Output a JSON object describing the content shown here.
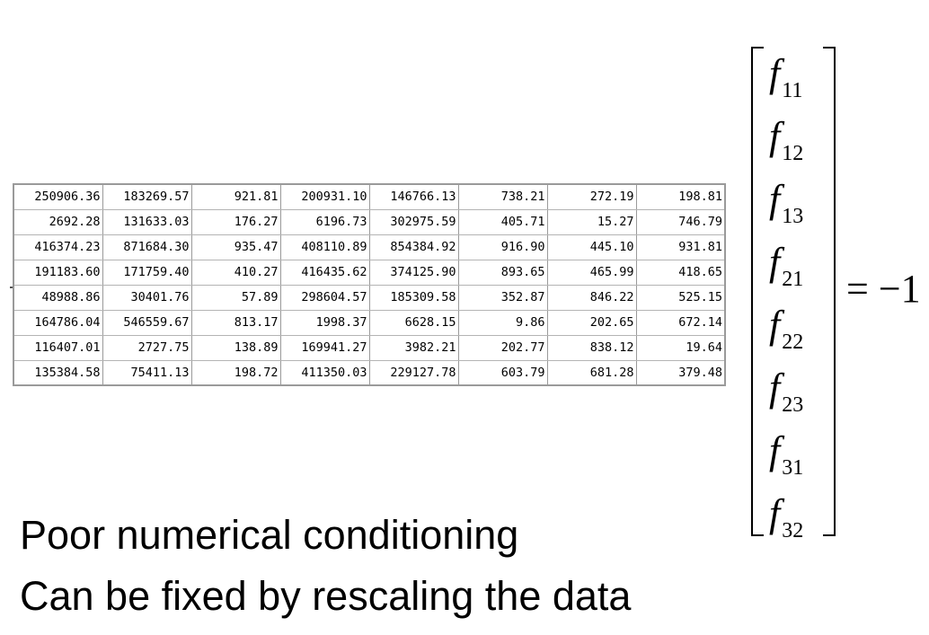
{
  "table": {
    "rows": [
      [
        "250906.36",
        "183269.57",
        "921.81",
        "200931.10",
        "146766.13",
        "738.21",
        "272.19",
        "198.81"
      ],
      [
        "2692.28",
        "131633.03",
        "176.27",
        "6196.73",
        "302975.59",
        "405.71",
        "15.27",
        "746.79"
      ],
      [
        "416374.23",
        "871684.30",
        "935.47",
        "408110.89",
        "854384.92",
        "916.90",
        "445.10",
        "931.81"
      ],
      [
        "191183.60",
        "171759.40",
        "410.27",
        "416435.62",
        "374125.90",
        "893.65",
        "465.99",
        "418.65"
      ],
      [
        "48988.86",
        "30401.76",
        "57.89",
        "298604.57",
        "185309.58",
        "352.87",
        "846.22",
        "525.15"
      ],
      [
        "164786.04",
        "546559.67",
        "813.17",
        "1998.37",
        "6628.15",
        "9.86",
        "202.65",
        "672.14"
      ],
      [
        "116407.01",
        "2727.75",
        "138.89",
        "169941.27",
        "3982.21",
        "202.77",
        "838.12",
        "19.64"
      ],
      [
        "135384.58",
        "75411.13",
        "198.72",
        "411350.03",
        "229127.78",
        "603.79",
        "681.28",
        "379.48"
      ]
    ]
  },
  "vector": {
    "symbol": "f",
    "subscripts": [
      "11",
      "12",
      "13",
      "21",
      "22",
      "23",
      "31",
      "32"
    ]
  },
  "equation": {
    "rhs": "= −1"
  },
  "captions": {
    "line1": "Poor numerical conditioning",
    "line2": "Can be fixed by rescaling the data"
  }
}
